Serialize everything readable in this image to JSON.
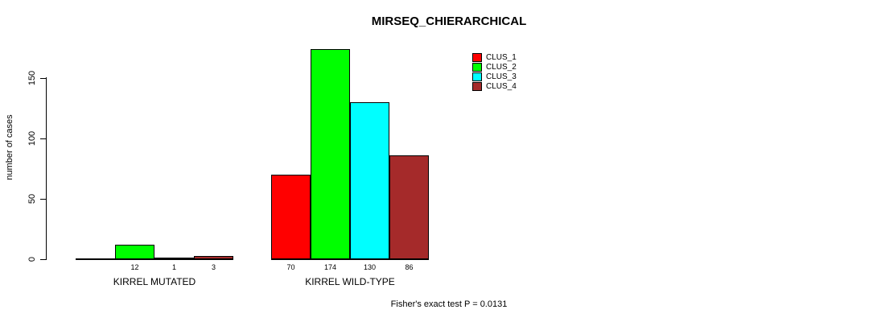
{
  "chart_data": {
    "type": "bar",
    "title": "MIRSEQ_CHIERARCHICAL",
    "ylabel": "number of cases",
    "xlabel": "",
    "categories": [
      "KIRREL MUTATED",
      "KIRREL WILD-TYPE"
    ],
    "series": [
      {
        "name": "CLUS_1",
        "color": "#FF0000",
        "values": [
          0,
          70
        ]
      },
      {
        "name": "CLUS_2",
        "color": "#00FF00",
        "values": [
          12,
          174
        ]
      },
      {
        "name": "CLUS_3",
        "color": "#00FFFF",
        "values": [
          1,
          130
        ]
      },
      {
        "name": "CLUS_4",
        "color": "#A52A2A",
        "values": [
          3,
          86
        ]
      }
    ],
    "bar_value_labels": [
      [
        "",
        "12",
        "1",
        "3"
      ],
      [
        "70",
        "174",
        "130",
        "86"
      ]
    ],
    "yticks": [
      0,
      50,
      100,
      150
    ],
    "ylim": [
      0,
      150
    ],
    "grid": false,
    "legend_position": "top-right",
    "annotation": "Fisher's exact test P = 0.0131"
  }
}
